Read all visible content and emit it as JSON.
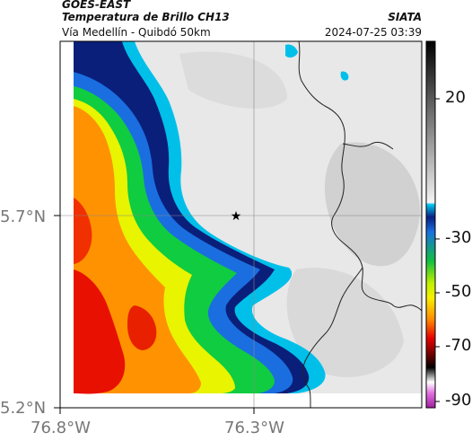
{
  "header": {
    "satellite": "GOES-EAST",
    "product": "Temperatura de Brillo CH13",
    "region": "Vía Medellín - Quibdó 50km",
    "source": "SIATA",
    "datetime": "2024-07-25 03:39"
  },
  "axes": {
    "lat_labels": [
      "5.7°N",
      "5.2°N"
    ],
    "lon_labels": [
      "76.8°W",
      "76.3°W"
    ]
  },
  "colorbar": {
    "ticks": [
      "20",
      "-30",
      "-50",
      "-70",
      "-90"
    ],
    "colors": {
      "light_gray": "#f0f0f0",
      "dark_gray": "#2a2a2a",
      "cyan": "#00bfe8",
      "navy": "#001a6e",
      "blue": "#1060d8",
      "green": "#10d040",
      "yellow": "#f4f400",
      "orange": "#ff9a00",
      "red": "#e01000",
      "black": "#000000",
      "magenta": "#c040c0"
    }
  },
  "map": {
    "marker_icon": "star-icon"
  }
}
